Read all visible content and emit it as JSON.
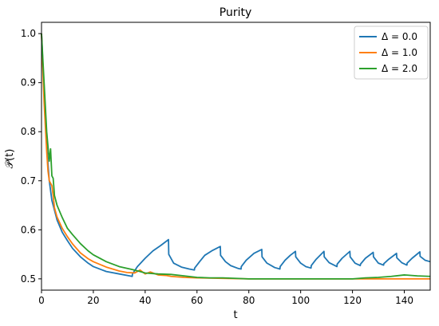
{
  "chart_data": {
    "type": "line",
    "title": "Purity",
    "xlabel": "t",
    "ylabel": "𝒫(t)",
    "xlim": [
      0,
      150
    ],
    "ylim": [
      0.477,
      1.023
    ],
    "xticks": [
      0,
      20,
      40,
      60,
      80,
      100,
      120,
      140
    ],
    "yticks": [
      0.5,
      0.6,
      0.7,
      0.8,
      0.9,
      1.0
    ],
    "xtick_labels": [
      "0",
      "20",
      "40",
      "60",
      "80",
      "100",
      "120",
      "140"
    ],
    "ytick_labels": [
      "0.5",
      "0.6",
      "0.7",
      "0.8",
      "0.9",
      "1.0"
    ],
    "grid": false,
    "legend_position": "top-right",
    "series": [
      {
        "name": "Δ = 0.0",
        "color": "#1f77b4",
        "points": [
          [
            0,
            1.0
          ],
          [
            1,
            0.88
          ],
          [
            2,
            0.77
          ],
          [
            3,
            0.7
          ],
          [
            4,
            0.66
          ],
          [
            5,
            0.64
          ],
          [
            6,
            0.62
          ],
          [
            8,
            0.595
          ],
          [
            10,
            0.578
          ],
          [
            12,
            0.562
          ],
          [
            15,
            0.545
          ],
          [
            18,
            0.532
          ],
          [
            20,
            0.525
          ],
          [
            25,
            0.515
          ],
          [
            30,
            0.51
          ],
          [
            35,
            0.505
          ],
          [
            35.1,
            0.51
          ],
          [
            37,
            0.525
          ],
          [
            40,
            0.542
          ],
          [
            43,
            0.557
          ],
          [
            46,
            0.568
          ],
          [
            49,
            0.58
          ],
          [
            49.1,
            0.55
          ],
          [
            51,
            0.532
          ],
          [
            54,
            0.524
          ],
          [
            57,
            0.52
          ],
          [
            59,
            0.518
          ],
          [
            59.1,
            0.522
          ],
          [
            61,
            0.535
          ],
          [
            63,
            0.548
          ],
          [
            66,
            0.558
          ],
          [
            69,
            0.566
          ],
          [
            69.1,
            0.548
          ],
          [
            71,
            0.535
          ],
          [
            73,
            0.527
          ],
          [
            76,
            0.521
          ],
          [
            77,
            0.52
          ],
          [
            77.1,
            0.525
          ],
          [
            79,
            0.538
          ],
          [
            82,
            0.552
          ],
          [
            85,
            0.56
          ],
          [
            85.1,
            0.545
          ],
          [
            87,
            0.532
          ],
          [
            90,
            0.523
          ],
          [
            92,
            0.52
          ],
          [
            92.1,
            0.525
          ],
          [
            94,
            0.538
          ],
          [
            96,
            0.548
          ],
          [
            98,
            0.556
          ],
          [
            98.1,
            0.545
          ],
          [
            100,
            0.532
          ],
          [
            102,
            0.525
          ],
          [
            104,
            0.522
          ],
          [
            104.1,
            0.527
          ],
          [
            106,
            0.54
          ],
          [
            109,
            0.556
          ],
          [
            109.1,
            0.545
          ],
          [
            111,
            0.533
          ],
          [
            114,
            0.525
          ],
          [
            114.1,
            0.53
          ],
          [
            116,
            0.542
          ],
          [
            119,
            0.556
          ],
          [
            119.1,
            0.545
          ],
          [
            121,
            0.532
          ],
          [
            123,
            0.527
          ],
          [
            123.1,
            0.53
          ],
          [
            125,
            0.542
          ],
          [
            128,
            0.554
          ],
          [
            128.1,
            0.545
          ],
          [
            130,
            0.532
          ],
          [
            132,
            0.528
          ],
          [
            132.1,
            0.531
          ],
          [
            134,
            0.54
          ],
          [
            137,
            0.552
          ],
          [
            137.1,
            0.543
          ],
          [
            139,
            0.533
          ],
          [
            141,
            0.528
          ],
          [
            141.1,
            0.532
          ],
          [
            143,
            0.542
          ],
          [
            146,
            0.555
          ],
          [
            146.1,
            0.546
          ],
          [
            148,
            0.538
          ],
          [
            150,
            0.535
          ]
        ]
      },
      {
        "name": "Δ = 1.0",
        "color": "#ff7f0e",
        "points": [
          [
            0,
            1.0
          ],
          [
            1,
            0.86
          ],
          [
            2,
            0.76
          ],
          [
            2.5,
            0.72
          ],
          [
            3,
            0.7
          ],
          [
            4,
            0.69
          ],
          [
            4.5,
            0.67
          ],
          [
            5,
            0.645
          ],
          [
            6,
            0.626
          ],
          [
            8,
            0.603
          ],
          [
            10,
            0.586
          ],
          [
            12,
            0.571
          ],
          [
            15,
            0.553
          ],
          [
            18,
            0.541
          ],
          [
            20,
            0.535
          ],
          [
            25,
            0.524
          ],
          [
            30,
            0.516
          ],
          [
            33,
            0.513
          ],
          [
            36,
            0.512
          ],
          [
            38,
            0.518
          ],
          [
            40,
            0.51
          ],
          [
            42,
            0.514
          ],
          [
            45,
            0.508
          ],
          [
            48,
            0.507
          ],
          [
            50,
            0.505
          ],
          [
            55,
            0.503
          ],
          [
            60,
            0.502
          ],
          [
            70,
            0.501
          ],
          [
            80,
            0.5
          ],
          [
            100,
            0.5
          ],
          [
            120,
            0.5
          ],
          [
            130,
            0.5
          ],
          [
            140,
            0.5
          ],
          [
            150,
            0.5
          ]
        ]
      },
      {
        "name": "Δ = 2.0",
        "color": "#2ca02c",
        "points": [
          [
            0,
            1.0
          ],
          [
            1,
            0.9
          ],
          [
            2,
            0.8
          ],
          [
            3,
            0.74
          ],
          [
            3.5,
            0.765
          ],
          [
            4,
            0.71
          ],
          [
            4.5,
            0.705
          ],
          [
            5,
            0.67
          ],
          [
            6,
            0.65
          ],
          [
            8,
            0.625
          ],
          [
            10,
            0.603
          ],
          [
            12,
            0.59
          ],
          [
            15,
            0.572
          ],
          [
            18,
            0.557
          ],
          [
            20,
            0.549
          ],
          [
            25,
            0.535
          ],
          [
            30,
            0.525
          ],
          [
            35,
            0.519
          ],
          [
            38,
            0.515
          ],
          [
            40,
            0.512
          ],
          [
            45,
            0.51
          ],
          [
            50,
            0.509
          ],
          [
            55,
            0.506
          ],
          [
            60,
            0.503
          ],
          [
            65,
            0.502
          ],
          [
            70,
            0.502
          ],
          [
            80,
            0.5
          ],
          [
            90,
            0.5
          ],
          [
            100,
            0.5
          ],
          [
            110,
            0.5
          ],
          [
            120,
            0.5
          ],
          [
            125,
            0.502
          ],
          [
            130,
            0.503
          ],
          [
            135,
            0.505
          ],
          [
            140,
            0.508
          ],
          [
            145,
            0.506
          ],
          [
            150,
            0.505
          ]
        ]
      }
    ]
  }
}
